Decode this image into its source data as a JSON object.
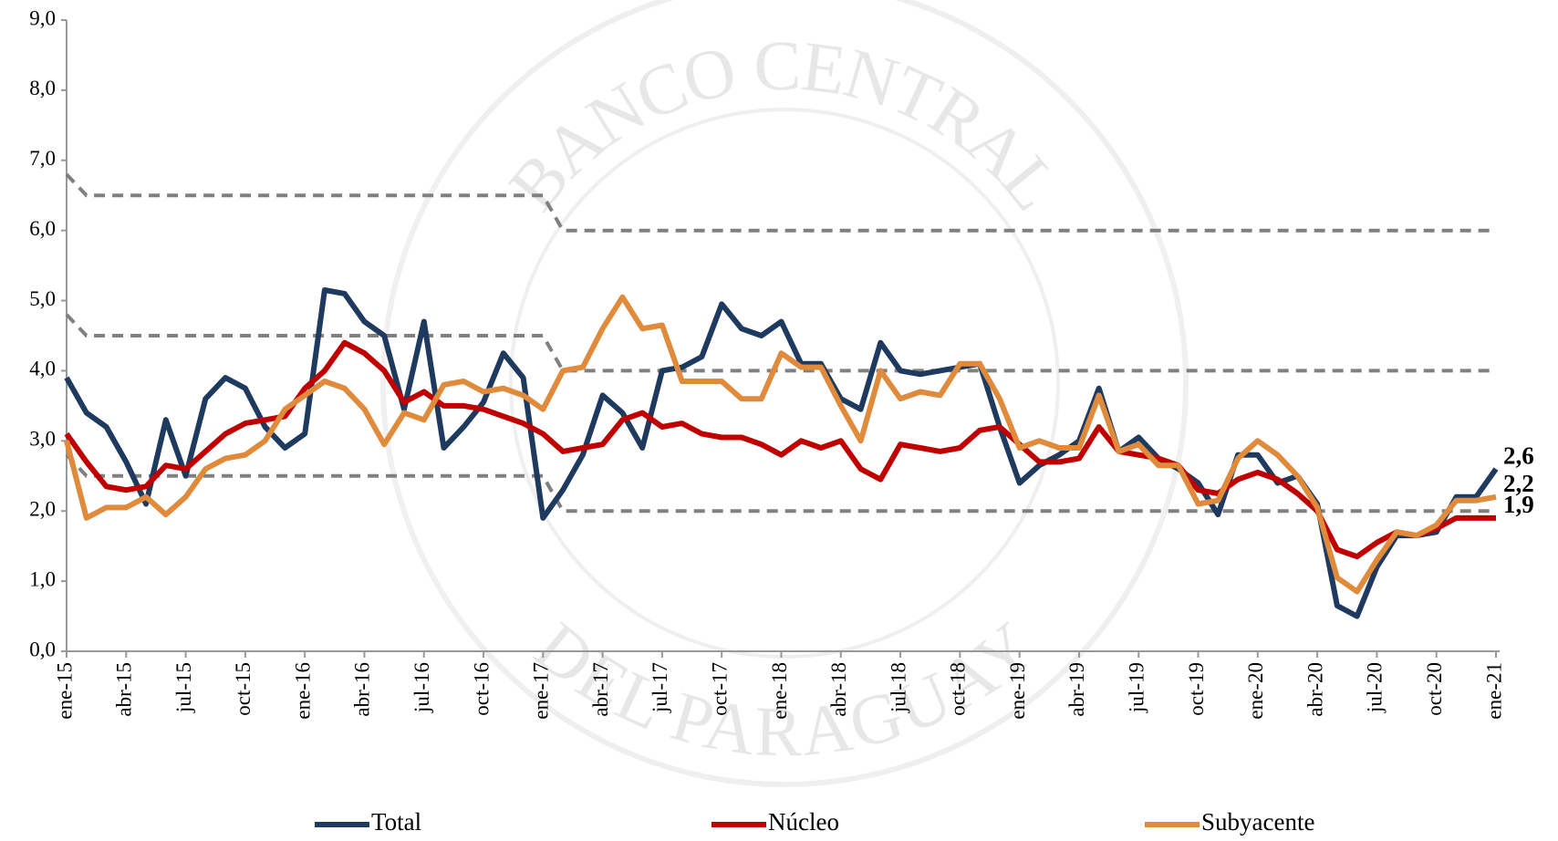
{
  "chart_data": {
    "type": "line",
    "watermark": [
      "BANCO CENTRAL",
      "DEL PARAGUAY"
    ],
    "categories": [
      "ene-15",
      null,
      null,
      "abr-15",
      null,
      null,
      "jul-15",
      null,
      null,
      "oct-15",
      null,
      null,
      "ene-16",
      null,
      null,
      "abr-16",
      null,
      null,
      "jul-16",
      null,
      null,
      "oct-16",
      null,
      null,
      "ene-17",
      null,
      null,
      "abr-17",
      null,
      null,
      "jul-17",
      null,
      null,
      "oct-17",
      null,
      null,
      "ene-18",
      null,
      null,
      "abr-18",
      null,
      null,
      "jul-18",
      null,
      null,
      "oct-18",
      null,
      null,
      "ene-19",
      null,
      null,
      "abr-19",
      null,
      null,
      "jul-19",
      null,
      null,
      "oct-19",
      null,
      null,
      "ene-20",
      null,
      null,
      "abr-20",
      null,
      null,
      "jul-20",
      null,
      null,
      "oct-20",
      null,
      null,
      "ene-21"
    ],
    "ylim": [
      0,
      9
    ],
    "yticks": [
      {
        "value": 0,
        "label": "0,0"
      },
      {
        "value": 1,
        "label": "1,0"
      },
      {
        "value": 2,
        "label": "2,0"
      },
      {
        "value": 3,
        "label": "3,0"
      },
      {
        "value": 4,
        "label": "4,0"
      },
      {
        "value": 5,
        "label": "5,0"
      },
      {
        "value": 6,
        "label": "6,0"
      },
      {
        "value": 7,
        "label": "7,0"
      },
      {
        "value": 8,
        "label": "8,0"
      },
      {
        "value": 9,
        "label": "9,0"
      }
    ],
    "series": [
      {
        "name": "Total",
        "color": "#1f3a5f",
        "values": [
          3.9,
          3.4,
          3.2,
          2.7,
          2.1,
          3.3,
          2.5,
          3.6,
          3.9,
          3.75,
          3.2,
          2.9,
          3.1,
          5.15,
          5.1,
          4.7,
          4.5,
          3.45,
          4.7,
          2.9,
          3.2,
          3.55,
          4.25,
          3.9,
          1.9,
          2.3,
          2.8,
          3.65,
          3.4,
          2.9,
          4.0,
          4.05,
          4.2,
          4.95,
          4.6,
          4.5,
          4.7,
          4.1,
          4.1,
          3.6,
          3.45,
          4.4,
          4.0,
          3.95,
          4.0,
          4.05,
          4.1,
          3.2,
          2.4,
          2.65,
          2.8,
          3.0,
          3.75,
          2.85,
          3.05,
          2.75,
          2.6,
          2.4,
          1.95,
          2.8,
          2.8,
          2.4,
          2.5,
          2.1,
          0.65,
          0.5,
          1.2,
          1.65,
          1.65,
          1.7,
          2.2,
          2.2,
          2.6
        ],
        "value_labels": [
          null,
          null,
          null,
          null,
          null,
          null,
          null,
          null,
          null,
          null,
          null,
          null,
          null,
          null,
          null,
          null,
          null,
          null,
          null,
          null,
          null,
          null,
          null,
          null,
          null,
          null,
          null,
          null,
          null,
          null,
          null,
          null,
          null,
          null,
          null,
          null,
          null,
          null,
          null,
          null,
          null,
          null,
          null,
          null,
          null,
          null,
          null,
          null,
          null,
          null,
          null,
          null,
          null,
          null,
          null,
          null,
          null,
          null,
          null,
          null,
          null,
          null,
          null,
          null,
          null,
          null,
          null,
          null,
          null,
          null,
          null,
          null,
          "2,6"
        ]
      },
      {
        "name": "Núcleo",
        "color": "#c00000",
        "values": [
          3.1,
          2.7,
          2.35,
          2.3,
          2.35,
          2.65,
          2.6,
          2.85,
          3.1,
          3.25,
          3.3,
          3.35,
          3.75,
          4.0,
          4.4,
          4.25,
          4.0,
          3.55,
          3.7,
          3.5,
          3.5,
          3.45,
          3.35,
          3.25,
          3.1,
          2.85,
          2.9,
          2.95,
          3.3,
          3.4,
          3.2,
          3.25,
          3.1,
          3.05,
          3.05,
          2.95,
          2.8,
          3.0,
          2.9,
          3.0,
          2.6,
          2.45,
          2.95,
          2.9,
          2.85,
          2.9,
          3.15,
          3.2,
          2.95,
          2.7,
          2.7,
          2.75,
          3.2,
          2.85,
          2.8,
          2.75,
          2.65,
          2.3,
          2.25,
          2.45,
          2.55,
          2.45,
          2.25,
          2.0,
          1.45,
          1.35,
          1.55,
          1.7,
          1.65,
          1.75,
          1.9,
          1.9,
          1.9
        ],
        "value_labels": [
          null,
          null,
          null,
          null,
          null,
          null,
          null,
          null,
          null,
          null,
          null,
          null,
          null,
          null,
          null,
          null,
          null,
          null,
          null,
          null,
          null,
          null,
          null,
          null,
          null,
          null,
          null,
          null,
          null,
          null,
          null,
          null,
          null,
          null,
          null,
          null,
          null,
          null,
          null,
          null,
          null,
          null,
          null,
          null,
          null,
          null,
          null,
          null,
          null,
          null,
          null,
          null,
          null,
          null,
          null,
          null,
          null,
          null,
          null,
          null,
          null,
          null,
          null,
          null,
          null,
          null,
          null,
          null,
          null,
          null,
          null,
          null,
          "1,9"
        ]
      },
      {
        "name": "Subyacente",
        "color": "#e08a3c",
        "values": [
          3.0,
          1.9,
          2.05,
          2.05,
          2.2,
          1.95,
          2.2,
          2.6,
          2.75,
          2.8,
          3.0,
          3.45,
          3.65,
          3.85,
          3.75,
          3.45,
          2.95,
          3.4,
          3.3,
          3.8,
          3.85,
          3.7,
          3.75,
          3.65,
          3.45,
          4.0,
          4.05,
          4.6,
          5.05,
          4.6,
          4.65,
          3.85,
          3.85,
          3.85,
          3.6,
          3.6,
          4.25,
          4.05,
          4.05,
          3.5,
          3.0,
          4.0,
          3.6,
          3.7,
          3.65,
          4.1,
          4.1,
          3.6,
          2.9,
          3.0,
          2.9,
          2.9,
          3.65,
          2.85,
          2.95,
          2.65,
          2.65,
          2.1,
          2.15,
          2.75,
          3.0,
          2.8,
          2.5,
          2.05,
          1.05,
          0.85,
          1.3,
          1.7,
          1.65,
          1.8,
          2.15,
          2.15,
          2.2
        ],
        "value_labels": [
          null,
          null,
          null,
          null,
          null,
          null,
          null,
          null,
          null,
          null,
          null,
          null,
          null,
          null,
          null,
          null,
          null,
          null,
          null,
          null,
          null,
          null,
          null,
          null,
          null,
          null,
          null,
          null,
          null,
          null,
          null,
          null,
          null,
          null,
          null,
          null,
          null,
          null,
          null,
          null,
          null,
          null,
          null,
          null,
          null,
          null,
          null,
          null,
          null,
          null,
          null,
          null,
          null,
          null,
          null,
          null,
          null,
          null,
          null,
          null,
          null,
          null,
          null,
          null,
          null,
          null,
          null,
          null,
          null,
          null,
          null,
          null,
          "2,2"
        ]
      }
    ],
    "reference_lines": [
      {
        "color": "#808080",
        "values": [
          6.8,
          6.5,
          6.5,
          6.5,
          6.5,
          6.5,
          6.5,
          6.5,
          6.5,
          6.5,
          6.5,
          6.5,
          6.5,
          6.5,
          6.5,
          6.5,
          6.5,
          6.5,
          6.5,
          6.5,
          6.5,
          6.5,
          6.5,
          6.5,
          6.5,
          6.0,
          6.0,
          6.0,
          6.0,
          6.0,
          6.0,
          6.0,
          6.0,
          6.0,
          6.0,
          6.0,
          6.0,
          6.0,
          6.0,
          6.0,
          6.0,
          6.0,
          6.0,
          6.0,
          6.0,
          6.0,
          6.0,
          6.0,
          6.0,
          6.0,
          6.0,
          6.0,
          6.0,
          6.0,
          6.0,
          6.0,
          6.0,
          6.0,
          6.0,
          6.0,
          6.0,
          6.0,
          6.0,
          6.0,
          6.0,
          6.0,
          6.0,
          6.0,
          6.0,
          6.0,
          6.0,
          6.0,
          6.0
        ]
      },
      {
        "color": "#808080",
        "values": [
          4.8,
          4.5,
          4.5,
          4.5,
          4.5,
          4.5,
          4.5,
          4.5,
          4.5,
          4.5,
          4.5,
          4.5,
          4.5,
          4.5,
          4.5,
          4.5,
          4.5,
          4.5,
          4.5,
          4.5,
          4.5,
          4.5,
          4.5,
          4.5,
          4.5,
          4.0,
          4.0,
          4.0,
          4.0,
          4.0,
          4.0,
          4.0,
          4.0,
          4.0,
          4.0,
          4.0,
          4.0,
          4.0,
          4.0,
          4.0,
          4.0,
          4.0,
          4.0,
          4.0,
          4.0,
          4.0,
          4.0,
          4.0,
          4.0,
          4.0,
          4.0,
          4.0,
          4.0,
          4.0,
          4.0,
          4.0,
          4.0,
          4.0,
          4.0,
          4.0,
          4.0,
          4.0,
          4.0,
          4.0,
          4.0,
          4.0,
          4.0,
          4.0,
          4.0,
          4.0,
          4.0,
          4.0,
          4.0
        ]
      },
      {
        "color": "#808080",
        "values": [
          2.8,
          2.5,
          2.5,
          2.5,
          2.5,
          2.5,
          2.5,
          2.5,
          2.5,
          2.5,
          2.5,
          2.5,
          2.5,
          2.5,
          2.5,
          2.5,
          2.5,
          2.5,
          2.5,
          2.5,
          2.5,
          2.5,
          2.5,
          2.5,
          2.5,
          2.0,
          2.0,
          2.0,
          2.0,
          2.0,
          2.0,
          2.0,
          2.0,
          2.0,
          2.0,
          2.0,
          2.0,
          2.0,
          2.0,
          2.0,
          2.0,
          2.0,
          2.0,
          2.0,
          2.0,
          2.0,
          2.0,
          2.0,
          2.0,
          2.0,
          2.0,
          2.0,
          2.0,
          2.0,
          2.0,
          2.0,
          2.0,
          2.0,
          2.0,
          2.0,
          2.0,
          2.0,
          2.0,
          2.0,
          2.0,
          2.0,
          2.0,
          2.0,
          2.0,
          2.0,
          2.0,
          2.0,
          2.0
        ]
      }
    ]
  }
}
